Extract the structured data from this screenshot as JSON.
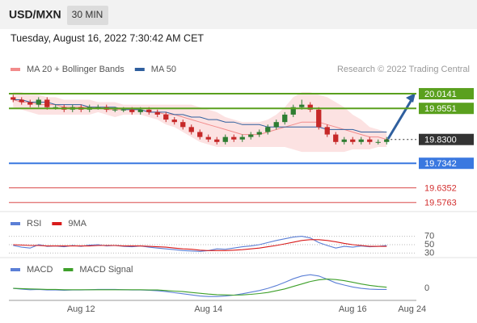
{
  "header": {
    "symbol": "USD/MXN",
    "interval": "30 MIN",
    "datetime": "Tuesday, August 16, 2022 7:30:42 AM CET"
  },
  "chart_data": [
    {
      "type": "candlestick",
      "credit": "Research © 2022 Trading Central",
      "categories": [
        null,
        null,
        null,
        null,
        null,
        null,
        null,
        null,
        "Aug 12",
        null,
        null,
        null,
        null,
        null,
        null,
        null,
        null,
        null,
        null,
        null,
        null,
        null,
        null,
        "Aug 14",
        null,
        null,
        null,
        null,
        null,
        null,
        null,
        null,
        null,
        null,
        null,
        null,
        null,
        null,
        null,
        null,
        "Aug 16",
        null,
        null,
        null,
        null,
        null,
        null,
        "Aug 24"
      ],
      "open": [
        20.0,
        19.99,
        19.98,
        19.97,
        19.99,
        19.96,
        19.96,
        19.95,
        19.96,
        19.95,
        19.96,
        19.96,
        19.95,
        19.95,
        19.95,
        19.94,
        19.95,
        19.94,
        19.93,
        19.91,
        19.9,
        19.88,
        19.86,
        19.84,
        19.83,
        19.82,
        19.84,
        19.83,
        19.84,
        19.85,
        19.86,
        19.88,
        19.9,
        19.93,
        19.96,
        19.97,
        19.95,
        19.88,
        19.85,
        19.82,
        19.83,
        19.82,
        19.83,
        19.82,
        19.82,
        null,
        null,
        null
      ],
      "high": [
        20.01,
        20.0,
        19.99,
        20.0,
        20.0,
        19.97,
        19.97,
        19.97,
        19.97,
        19.97,
        19.97,
        19.97,
        19.96,
        19.96,
        19.96,
        19.96,
        19.96,
        19.95,
        19.94,
        19.92,
        19.91,
        19.89,
        19.87,
        19.85,
        19.84,
        19.85,
        19.85,
        19.85,
        19.86,
        19.87,
        19.89,
        19.91,
        19.94,
        19.97,
        19.99,
        19.98,
        19.96,
        19.89,
        19.86,
        19.84,
        19.84,
        19.84,
        19.84,
        19.83,
        19.84,
        null,
        null,
        null
      ],
      "low": [
        19.98,
        19.97,
        19.96,
        19.96,
        19.95,
        19.95,
        19.94,
        19.94,
        19.94,
        19.94,
        19.95,
        19.94,
        19.94,
        19.94,
        19.93,
        19.93,
        19.93,
        19.92,
        19.9,
        19.89,
        19.87,
        19.85,
        19.83,
        19.82,
        19.81,
        19.81,
        19.82,
        19.82,
        19.83,
        19.84,
        19.85,
        19.87,
        19.89,
        19.92,
        19.95,
        19.94,
        19.87,
        19.84,
        19.81,
        19.81,
        19.81,
        19.81,
        19.81,
        19.81,
        19.81,
        null,
        null,
        null
      ],
      "close": [
        19.99,
        19.98,
        19.97,
        19.99,
        19.96,
        19.96,
        19.95,
        19.96,
        19.95,
        19.96,
        19.96,
        19.95,
        19.95,
        19.95,
        19.94,
        19.95,
        19.94,
        19.93,
        19.91,
        19.9,
        19.88,
        19.86,
        19.84,
        19.83,
        19.82,
        19.84,
        19.83,
        19.84,
        19.85,
        19.86,
        19.88,
        19.9,
        19.93,
        19.96,
        19.97,
        19.95,
        19.88,
        19.85,
        19.82,
        19.83,
        19.82,
        19.83,
        19.82,
        19.82,
        19.83,
        null,
        null,
        null
      ],
      "up_color": "#2e7d32",
      "down_color": "#c62828",
      "series": [
        {
          "name": "MA 20 + Bollinger Bands",
          "color": "#f28b8b",
          "band_color": "#fbd5d5",
          "values": [
            19.99,
            19.98,
            19.98,
            19.97,
            19.97,
            19.97,
            19.96,
            19.96,
            19.96,
            19.96,
            19.96,
            19.95,
            19.95,
            19.95,
            19.95,
            19.95,
            19.94,
            19.94,
            19.93,
            19.93,
            19.92,
            19.91,
            19.9,
            19.89,
            19.88,
            19.87,
            19.86,
            19.85,
            19.85,
            19.85,
            19.86,
            19.87,
            19.88,
            19.89,
            19.9,
            19.9,
            19.9,
            19.89,
            19.88,
            19.87,
            19.86,
            19.85,
            19.84,
            19.84,
            19.83,
            null,
            null,
            null
          ],
          "band_upper": [
            20.02,
            20.02,
            20.01,
            20.01,
            20.0,
            20.0,
            19.99,
            19.99,
            19.99,
            19.99,
            19.98,
            19.98,
            19.98,
            19.97,
            19.97,
            19.97,
            19.97,
            19.97,
            19.97,
            19.97,
            19.97,
            19.97,
            19.96,
            19.95,
            19.94,
            19.92,
            19.91,
            19.9,
            19.9,
            19.9,
            19.91,
            19.93,
            19.96,
            20.0,
            20.02,
            20.02,
            20.01,
            20.0,
            19.98,
            19.96,
            19.93,
            19.91,
            19.88,
            19.87,
            19.86,
            null,
            null,
            null
          ],
          "band_lower": [
            19.96,
            19.95,
            19.94,
            19.93,
            19.93,
            19.93,
            19.93,
            19.93,
            19.93,
            19.93,
            19.94,
            19.93,
            19.92,
            19.93,
            19.93,
            19.93,
            19.92,
            19.91,
            19.89,
            19.88,
            19.86,
            19.84,
            19.82,
            19.81,
            19.8,
            19.8,
            19.8,
            19.8,
            19.8,
            19.8,
            19.8,
            19.8,
            19.8,
            19.79,
            19.78,
            19.78,
            19.78,
            19.78,
            19.78,
            19.78,
            19.79,
            19.79,
            19.79,
            19.8,
            19.8,
            null,
            null,
            null
          ]
        },
        {
          "name": "MA 50",
          "color": "#2f5f9e",
          "values": [
            19.99,
            19.99,
            19.98,
            19.98,
            19.98,
            19.97,
            19.97,
            19.97,
            19.97,
            19.96,
            19.96,
            19.96,
            19.96,
            19.95,
            19.95,
            19.95,
            19.94,
            19.94,
            19.94,
            19.93,
            19.93,
            19.92,
            19.92,
            19.91,
            19.91,
            19.9,
            19.9,
            19.89,
            19.89,
            19.89,
            19.88,
            19.88,
            19.88,
            19.88,
            19.88,
            19.88,
            19.88,
            19.87,
            19.87,
            19.87,
            19.87,
            19.86,
            19.86,
            19.86,
            19.86,
            null,
            null,
            null
          ]
        }
      ],
      "levels": [
        {
          "value": 20.0141,
          "label": "20.0141",
          "color": "#5aa01e",
          "style": "box"
        },
        {
          "value": 19.9551,
          "label": "19.9551",
          "color": "#5aa01e",
          "style": "box"
        },
        {
          "value": 19.83,
          "label": "19.8300",
          "color": "#333333",
          "style": "current"
        },
        {
          "value": 19.7342,
          "label": "19.7342",
          "color": "#3a78e0",
          "style": "box"
        },
        {
          "value": 19.6352,
          "label": "19.6352",
          "color": "#d32f2f",
          "style": "text"
        },
        {
          "value": 19.5763,
          "label": "19.5763",
          "color": "#d32f2f",
          "style": "text"
        }
      ],
      "ylim": [
        19.54,
        20.05
      ]
    },
    {
      "type": "line",
      "ylim": [
        25,
        75
      ],
      "yticks": [
        70,
        50,
        30
      ],
      "grid": true,
      "series": [
        {
          "name": "RSI",
          "color": "#5b7fd6",
          "values": [
            48,
            44,
            42,
            50,
            46,
            47,
            45,
            48,
            46,
            49,
            50,
            47,
            48,
            46,
            45,
            47,
            44,
            42,
            40,
            38,
            36,
            35,
            34,
            36,
            40,
            39,
            42,
            45,
            47,
            50,
            55,
            60,
            64,
            68,
            70,
            66,
            55,
            48,
            42,
            46,
            44,
            47,
            45,
            46,
            48,
            null,
            null,
            null
          ]
        },
        {
          "name": "9MA",
          "color": "#d81b1b",
          "values": [
            50,
            49,
            48,
            48,
            47,
            47,
            47,
            47,
            47,
            47,
            48,
            48,
            48,
            47,
            47,
            47,
            46,
            45,
            44,
            42,
            40,
            39,
            37,
            36,
            36,
            36,
            37,
            38,
            40,
            42,
            45,
            48,
            52,
            56,
            60,
            62,
            62,
            60,
            57,
            53,
            50,
            48,
            46,
            46,
            46,
            null,
            null,
            null
          ]
        }
      ]
    },
    {
      "type": "line",
      "ylim": [
        -0.05,
        0.08
      ],
      "yticks": [
        0
      ],
      "series": [
        {
          "name": "MACD",
          "color": "#5b7fd6",
          "values": [
            0.0,
            -0.003,
            -0.005,
            -0.004,
            -0.006,
            -0.006,
            -0.007,
            -0.006,
            -0.006,
            -0.005,
            -0.004,
            -0.004,
            -0.004,
            -0.005,
            -0.006,
            -0.006,
            -0.007,
            -0.009,
            -0.012,
            -0.016,
            -0.02,
            -0.024,
            -0.028,
            -0.03,
            -0.03,
            -0.028,
            -0.025,
            -0.02,
            -0.014,
            -0.008,
            0.0,
            0.01,
            0.022,
            0.035,
            0.045,
            0.05,
            0.045,
            0.033,
            0.02,
            0.012,
            0.005,
            0.0,
            -0.003,
            -0.004,
            -0.004,
            null,
            null,
            null
          ]
        },
        {
          "name": "MACD Signal",
          "color": "#3ea02a",
          "values": [
            0.0,
            -0.001,
            -0.002,
            -0.003,
            -0.004,
            -0.004,
            -0.005,
            -0.005,
            -0.005,
            -0.005,
            -0.005,
            -0.005,
            -0.005,
            -0.005,
            -0.005,
            -0.005,
            -0.006,
            -0.006,
            -0.008,
            -0.01,
            -0.012,
            -0.015,
            -0.018,
            -0.021,
            -0.023,
            -0.024,
            -0.025,
            -0.024,
            -0.022,
            -0.019,
            -0.015,
            -0.009,
            -0.002,
            0.007,
            0.016,
            0.025,
            0.031,
            0.034,
            0.032,
            0.028,
            0.022,
            0.016,
            0.011,
            0.007,
            0.004,
            null,
            null,
            null
          ]
        }
      ]
    }
  ]
}
